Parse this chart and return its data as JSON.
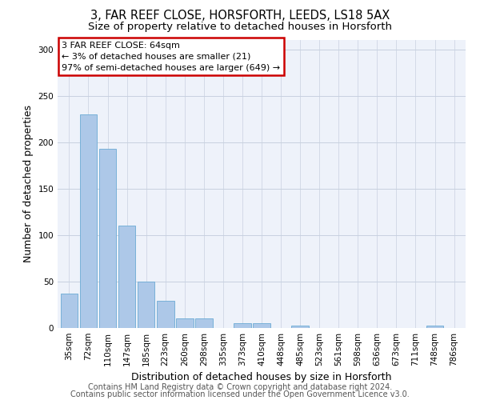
{
  "title1": "3, FAR REEF CLOSE, HORSFORTH, LEEDS, LS18 5AX",
  "title2": "Size of property relative to detached houses in Horsforth",
  "xlabel": "Distribution of detached houses by size in Horsforth",
  "ylabel": "Number of detached properties",
  "categories": [
    "35sqm",
    "72sqm",
    "110sqm",
    "147sqm",
    "185sqm",
    "223sqm",
    "260sqm",
    "298sqm",
    "335sqm",
    "373sqm",
    "410sqm",
    "448sqm",
    "485sqm",
    "523sqm",
    "561sqm",
    "598sqm",
    "636sqm",
    "673sqm",
    "711sqm",
    "748sqm",
    "786sqm"
  ],
  "values": [
    37,
    230,
    193,
    110,
    50,
    29,
    10,
    10,
    0,
    5,
    5,
    0,
    3,
    0,
    0,
    0,
    0,
    0,
    0,
    3,
    0
  ],
  "bar_color": "#adc8e8",
  "bar_edge_color": "#6aaad4",
  "annotation_box_color": "#ffffff",
  "annotation_box_edge": "#cc0000",
  "annotation_text": "3 FAR REEF CLOSE: 64sqm\n← 3% of detached houses are smaller (21)\n97% of semi-detached houses are larger (649) →",
  "ylim": [
    0,
    310
  ],
  "yticks": [
    0,
    50,
    100,
    150,
    200,
    250,
    300
  ],
  "grid_color": "#c8d0e0",
  "bg_color": "#eef2fa",
  "footer1": "Contains HM Land Registry data © Crown copyright and database right 2024.",
  "footer2": "Contains public sector information licensed under the Open Government Licence v3.0.",
  "title1_fontsize": 10.5,
  "title2_fontsize": 9.5,
  "ylabel_fontsize": 9,
  "xlabel_fontsize": 9,
  "tick_fontsize": 7.5,
  "annotation_fontsize": 8,
  "footer_fontsize": 7
}
